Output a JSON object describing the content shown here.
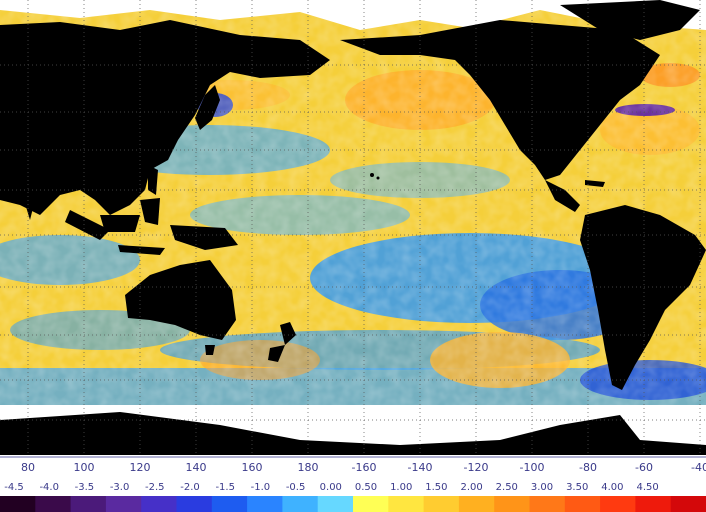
{
  "map": {
    "type": "sea-surface-temperature-anomaly",
    "projection": "equirectangular",
    "center_longitude": 180,
    "longitude_range": [
      60,
      320
    ],
    "latitude_range": [
      -80,
      90
    ]
  },
  "longitude_axis": {
    "labels": [
      "80",
      "100",
      "120",
      "140",
      "160",
      "180",
      "-160",
      "-140",
      "-120",
      "-100",
      "-80",
      "-60",
      "-40"
    ]
  },
  "colorbar": {
    "labels": [
      "-4.5",
      "-4.0",
      "-3.5",
      "-3.0",
      "-2.5",
      "-2.0",
      "-1.5",
      "-1.0",
      "-0.5",
      "0.00",
      "0.50",
      "1.00",
      "1.50",
      "2.00",
      "2.50",
      "3.00",
      "3.50",
      "4.00",
      "4.50"
    ],
    "colors": [
      "#220022",
      "#3a0a4a",
      "#4b1a7a",
      "#5a2aa0",
      "#4630c8",
      "#2a3ce0",
      "#1e5cf0",
      "#2a84ff",
      "#3fb2ff",
      "#66d8ff",
      "#ffff55",
      "#ffe640",
      "#ffcc30",
      "#ffb020",
      "#ff9418",
      "#ff7818",
      "#ff5a14",
      "#ff3a10",
      "#ee1a0c",
      "#d4080a"
    ]
  },
  "colors": {
    "land": "#000000",
    "ice": "#ffffff",
    "ocean_warm": "#f7d23b",
    "ocean_cool": "#2f8fe8",
    "grid": "#555555"
  }
}
